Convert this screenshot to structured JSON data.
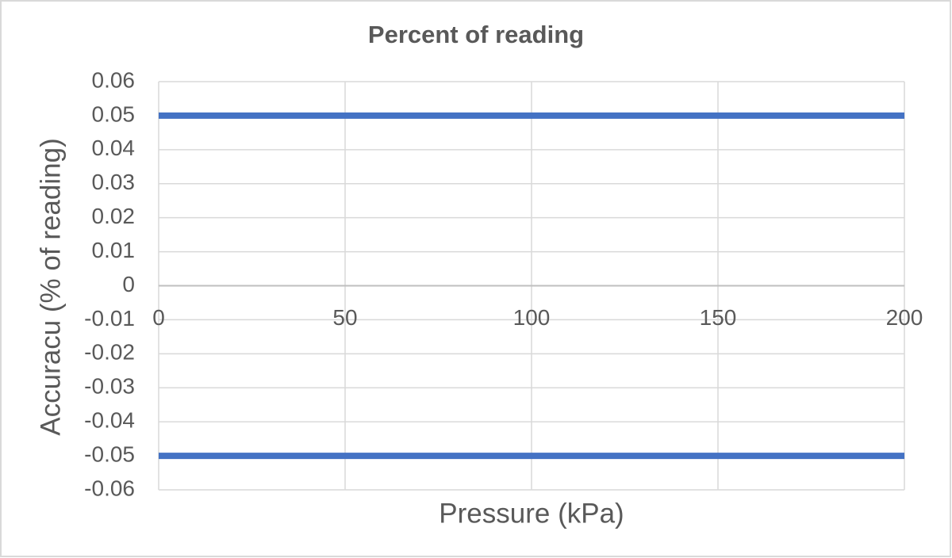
{
  "chart_data": {
    "type": "line",
    "title": "Percent of reading",
    "x_label": "Pressure (kPa)",
    "y_label": "Accuracu (% of reading)",
    "x": [
      0,
      200
    ],
    "series": [
      {
        "color": "#4472c4",
        "values": [
          0.05,
          0.05
        ]
      },
      {
        "color": "#4472c4",
        "values": [
          -0.05,
          -0.05
        ]
      }
    ],
    "xlim": [
      0,
      200
    ],
    "xticks": [
      0,
      50,
      100,
      150,
      200
    ],
    "ylim": [
      -0.06,
      0.06
    ],
    "yticks": [
      -0.06,
      -0.05,
      -0.04,
      -0.03,
      -0.02,
      -0.01,
      0,
      0.01,
      0.02,
      0.03,
      0.04,
      0.05,
      0.06
    ],
    "grid": true
  }
}
